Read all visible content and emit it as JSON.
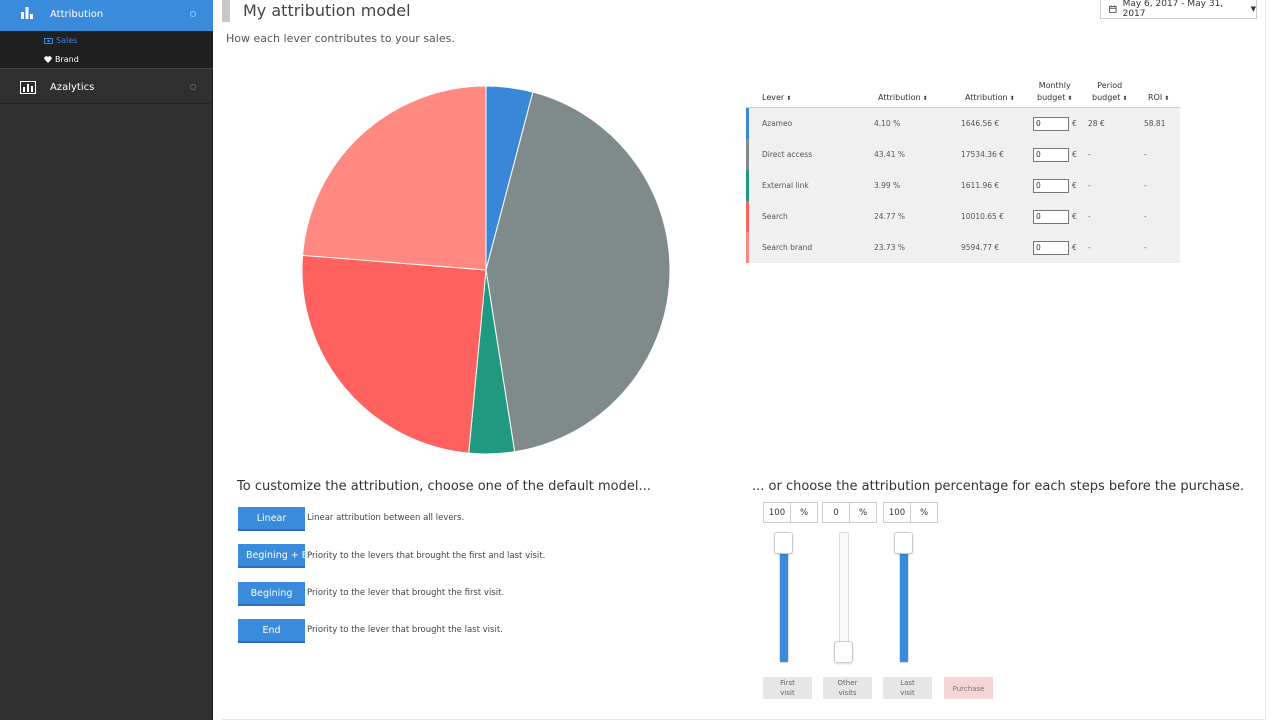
{
  "sidebar": {
    "attribution_label": "Attribution",
    "sub_items": [
      {
        "label": "Sales"
      },
      {
        "label": "Brand"
      }
    ],
    "azalytics_label": "Azalytics"
  },
  "header": {
    "title": "My attribution model",
    "subtitle": "How each lever contributes to your sales.",
    "date_range": "May 6, 2017 - May 31, 2017"
  },
  "pie": {
    "colors": [
      "#3a87d8",
      "#7f8b8a",
      "#1f9a80",
      "#ff615e",
      "#ff8880"
    ]
  },
  "chart_data": {
    "type": "pie",
    "categories": [
      "Azameo",
      "Direct access",
      "External link",
      "Search",
      "Search brand"
    ],
    "values": [
      4.1,
      43.41,
      3.99,
      24.77,
      23.73
    ]
  },
  "table": {
    "headers": {
      "lever": "Lever",
      "attr_pct": "Attribution",
      "attr_eur": "Attribution",
      "monthly_1": "Monthly",
      "monthly_2": "budget",
      "period_1": "Period",
      "period_2": "budget",
      "roi": "ROI"
    },
    "rows": [
      {
        "lever": "Azameo",
        "pct": "4.10  %",
        "eur": "1646.56  €",
        "monthly": "0",
        "cur": "€",
        "period": "28  €",
        "roi": "58.81"
      },
      {
        "lever": "Direct access",
        "pct": "43.41  %",
        "eur": "17534.36  €",
        "monthly": "0",
        "cur": "€",
        "period": "-",
        "roi": "-"
      },
      {
        "lever": "External link",
        "pct": "3.99  %",
        "eur": "1611.96  €",
        "monthly": "0",
        "cur": "€",
        "period": "-",
        "roi": "-"
      },
      {
        "lever": "Search",
        "pct": "24.77  %",
        "eur": "10010.65  €",
        "monthly": "0",
        "cur": "€",
        "period": "-",
        "roi": "-"
      },
      {
        "lever": "Search brand",
        "pct": "23.73  %",
        "eur": "9594.77  €",
        "monthly": "0",
        "cur": "€",
        "period": "-",
        "roi": "-"
      }
    ]
  },
  "models": {
    "title": "To customize the attribution, choose one of the default model...",
    "buttons": [
      {
        "label": "Linear",
        "desc": "Linear attribution between all levers."
      },
      {
        "label": "Begining + End",
        "desc": "Priority to the levers that brought the first and last visit."
      },
      {
        "label": "Begining",
        "desc": "Priority to the lever that brought the first visit."
      },
      {
        "label": "End",
        "desc": "Priority to the lever that brought the last visit."
      }
    ]
  },
  "steps": {
    "title": "... or choose the attribution percentage for each steps before the purchase.",
    "pct_symbol": "%",
    "sliders": [
      {
        "value": "100",
        "level": 1.0,
        "label_1": "First",
        "label_2": "visit"
      },
      {
        "value": "0",
        "level": 0.0,
        "label_1": "Other",
        "label_2": "visits"
      },
      {
        "value": "100",
        "level": 1.0,
        "label_1": "Last",
        "label_2": "visit"
      }
    ],
    "purchase_label": "Purchase"
  }
}
